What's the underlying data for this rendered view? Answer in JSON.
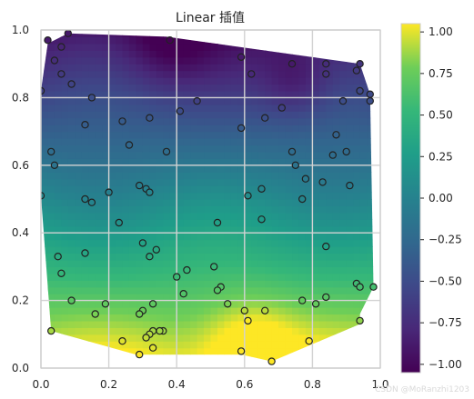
{
  "chart_data": {
    "type": "heatmap",
    "title": "Linear 插值",
    "xlabel": "",
    "ylabel": "",
    "xlim": [
      0,
      1
    ],
    "ylim": [
      0,
      1
    ],
    "grid": true,
    "x_ticks": [
      0.0,
      0.2,
      0.4,
      0.6,
      0.8,
      1.0
    ],
    "y_ticks": [
      0.0,
      0.2,
      0.4,
      0.6,
      0.8,
      1.0
    ],
    "x_tick_labels": [
      "0.0",
      "0.2",
      "0.4",
      "0.6",
      "0.8",
      "1.0"
    ],
    "y_tick_labels": [
      "0.0",
      "0.2",
      "0.4",
      "0.6",
      "0.8",
      "1.0"
    ],
    "colormap": "viridis",
    "colorbar": {
      "range": [
        -1.05,
        1.05
      ],
      "ticks": [
        1.0,
        0.75,
        0.5,
        0.25,
        0.0,
        -0.25,
        -0.5,
        -0.75,
        -1.0
      ],
      "tick_labels": [
        "1.00",
        "0.75",
        "0.50",
        "0.25",
        "0.00",
        "−0.25",
        "−0.50",
        "−0.75",
        "−1.00"
      ]
    },
    "hull": [
      [
        0.0,
        0.82
      ],
      [
        0.02,
        0.96
      ],
      [
        0.08,
        0.99
      ],
      [
        0.37,
        0.98
      ],
      [
        0.94,
        0.9
      ],
      [
        0.97,
        0.81
      ],
      [
        0.98,
        0.24
      ],
      [
        0.94,
        0.16
      ],
      [
        0.94,
        0.13
      ],
      [
        0.68,
        0.02
      ],
      [
        0.59,
        0.04
      ],
      [
        0.28,
        0.04
      ],
      [
        0.03,
        0.11
      ],
      [
        0.0,
        0.51
      ]
    ],
    "points": [
      [
        0.02,
        0.97
      ],
      [
        0.08,
        0.99
      ],
      [
        0.06,
        0.95
      ],
      [
        0.04,
        0.91
      ],
      [
        0.06,
        0.87
      ],
      [
        0.09,
        0.84
      ],
      [
        0.0,
        0.82
      ],
      [
        0.15,
        0.8
      ],
      [
        0.38,
        0.97
      ],
      [
        0.59,
        0.92
      ],
      [
        0.62,
        0.87
      ],
      [
        0.74,
        0.9
      ],
      [
        0.84,
        0.9
      ],
      [
        0.84,
        0.87
      ],
      [
        0.94,
        0.9
      ],
      [
        0.93,
        0.88
      ],
      [
        0.94,
        0.82
      ],
      [
        0.97,
        0.81
      ],
      [
        0.97,
        0.79
      ],
      [
        0.24,
        0.73
      ],
      [
        0.13,
        0.72
      ],
      [
        0.32,
        0.74
      ],
      [
        0.46,
        0.79
      ],
      [
        0.41,
        0.76
      ],
      [
        0.71,
        0.77
      ],
      [
        0.66,
        0.74
      ],
      [
        0.89,
        0.79
      ],
      [
        0.87,
        0.69
      ],
      [
        0.59,
        0.71
      ],
      [
        0.26,
        0.66
      ],
      [
        0.37,
        0.64
      ],
      [
        0.03,
        0.64
      ],
      [
        0.04,
        0.6
      ],
      [
        0.74,
        0.64
      ],
      [
        0.75,
        0.6
      ],
      [
        0.86,
        0.63
      ],
      [
        0.9,
        0.64
      ],
      [
        0.78,
        0.56
      ],
      [
        0.83,
        0.55
      ],
      [
        0.2,
        0.52
      ],
      [
        0.29,
        0.54
      ],
      [
        0.31,
        0.53
      ],
      [
        0.32,
        0.52
      ],
      [
        0.13,
        0.5
      ],
      [
        0.15,
        0.49
      ],
      [
        0.0,
        0.51
      ],
      [
        0.77,
        0.5
      ],
      [
        0.61,
        0.51
      ],
      [
        0.65,
        0.53
      ],
      [
        0.91,
        0.54
      ],
      [
        0.23,
        0.43
      ],
      [
        0.52,
        0.43
      ],
      [
        0.65,
        0.44
      ],
      [
        0.84,
        0.36
      ],
      [
        0.3,
        0.37
      ],
      [
        0.34,
        0.35
      ],
      [
        0.32,
        0.33
      ],
      [
        0.13,
        0.34
      ],
      [
        0.05,
        0.33
      ],
      [
        0.06,
        0.28
      ],
      [
        0.43,
        0.29
      ],
      [
        0.4,
        0.27
      ],
      [
        0.51,
        0.3
      ],
      [
        0.53,
        0.24
      ],
      [
        0.52,
        0.23
      ],
      [
        0.42,
        0.22
      ],
      [
        0.55,
        0.19
      ],
      [
        0.77,
        0.2
      ],
      [
        0.81,
        0.19
      ],
      [
        0.84,
        0.21
      ],
      [
        0.93,
        0.25
      ],
      [
        0.94,
        0.24
      ],
      [
        0.98,
        0.24
      ],
      [
        0.19,
        0.19
      ],
      [
        0.09,
        0.2
      ],
      [
        0.16,
        0.16
      ],
      [
        0.3,
        0.17
      ],
      [
        0.33,
        0.19
      ],
      [
        0.36,
        0.11
      ],
      [
        0.35,
        0.11
      ],
      [
        0.33,
        0.11
      ],
      [
        0.32,
        0.1
      ],
      [
        0.31,
        0.09
      ],
      [
        0.24,
        0.08
      ],
      [
        0.33,
        0.06
      ],
      [
        0.29,
        0.04
      ],
      [
        0.03,
        0.11
      ],
      [
        0.6,
        0.17
      ],
      [
        0.61,
        0.14
      ],
      [
        0.66,
        0.17
      ],
      [
        0.59,
        0.05
      ],
      [
        0.68,
        0.02
      ],
      [
        0.79,
        0.08
      ],
      [
        0.94,
        0.14
      ],
      [
        0.29,
        0.16
      ]
    ]
  },
  "watermark": "CSDN @MoRanzhi1203"
}
